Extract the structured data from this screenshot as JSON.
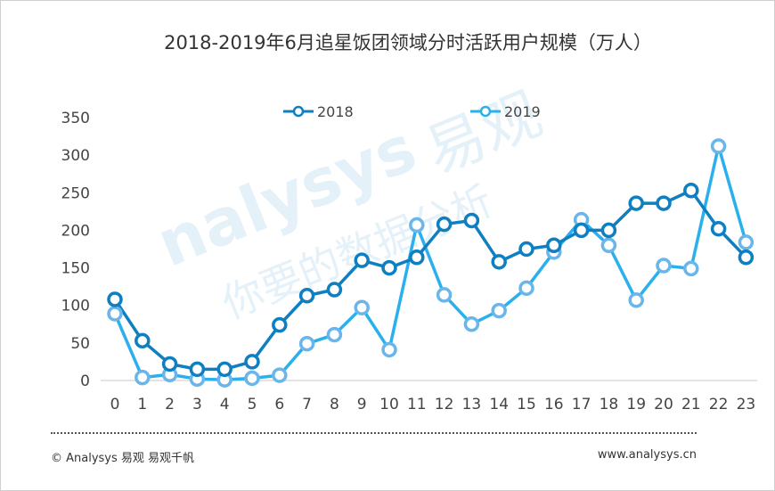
{
  "chart_data": {
    "type": "line",
    "title": "2018-2019年6月追星饭团领域分时活跃用户规模（万人）",
    "xlabel": "",
    "ylabel": "",
    "categories": [
      "0",
      "1",
      "2",
      "3",
      "4",
      "5",
      "6",
      "7",
      "8",
      "9",
      "10",
      "11",
      "12",
      "13",
      "14",
      "15",
      "16",
      "17",
      "18",
      "19",
      "20",
      "21",
      "22",
      "23"
    ],
    "ylim": [
      0,
      350
    ],
    "yticks": [
      0,
      50,
      100,
      150,
      200,
      250,
      300,
      350
    ],
    "grid": false,
    "legend_position": "top-center",
    "series": [
      {
        "name": "2018",
        "color": "#0e7fc0",
        "values": [
          108,
          53,
          22,
          15,
          15,
          25,
          74,
          113,
          121,
          160,
          150,
          164,
          208,
          213,
          158,
          175,
          180,
          200,
          200,
          236,
          236,
          253,
          202,
          164
        ]
      },
      {
        "name": "2019",
        "color": "#2ab0ec",
        "values": [
          89,
          4,
          8,
          2,
          1,
          3,
          7,
          49,
          61,
          97,
          41,
          207,
          114,
          75,
          93,
          123,
          171,
          214,
          180,
          107,
          153,
          149,
          312,
          184
        ]
      }
    ]
  },
  "watermark": {
    "brand": "易观",
    "name": "nalysys",
    "slogan": "你要的数据分析"
  },
  "footer": {
    "left": "© Analysys 易观 易观千帆",
    "right": "www.analysys.cn"
  }
}
